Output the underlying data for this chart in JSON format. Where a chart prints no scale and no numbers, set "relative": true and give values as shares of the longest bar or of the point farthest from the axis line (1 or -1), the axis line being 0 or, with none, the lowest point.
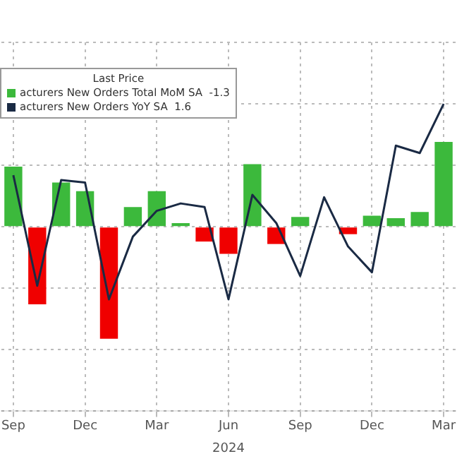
{
  "chart_data": {
    "type": "bar",
    "relative": true,
    "legend": "top left",
    "legend_title": "Last Price",
    "grid": true,
    "categories": [
      "Sep",
      null,
      null,
      "Dec",
      null,
      null,
      "Mar",
      null,
      null,
      "Jun",
      null,
      null,
      "Sep",
      null,
      null,
      "Dec",
      null,
      null,
      "Mar"
    ],
    "annotations": [
      "2024"
    ],
    "series": [
      {
        "name": "acturers New Orders Total MoM SA  -1.3",
        "colors": [
          "#3cb93c",
          "#f00000",
          "#3cb93c",
          "#3cb93c",
          "#f00000",
          "#3cb93c",
          "#3cb93c",
          "#3cb93c",
          "#f00000",
          "#f00000",
          "#3cb93c",
          "#f00000",
          "#3cb93c",
          "#3cb93c",
          "#f00000",
          "#3cb93c",
          "#3cb93c",
          "#3cb93c",
          "#3cb93c"
        ],
        "values": [
          0.49,
          -0.63,
          0.36,
          0.29,
          -0.91,
          0.16,
          0.29,
          0.03,
          -0.12,
          -0.22,
          0.51,
          -0.14,
          0.08,
          0,
          -0.06,
          0.09,
          0.07,
          0.12,
          0.69
        ]
      },
      {
        "name": "acturers New Orders YoY SA  1.6",
        "type": "line",
        "color": "#1a2a44",
        "values": [
          0.42,
          -0.48,
          0.38,
          0.36,
          -0.59,
          -0.08,
          0.13,
          0.19,
          0.16,
          -0.59,
          0.26,
          0.03,
          -0.4,
          0.24,
          -0.16,
          -0.37,
          0.66,
          0.6,
          1.0
        ]
      }
    ]
  }
}
